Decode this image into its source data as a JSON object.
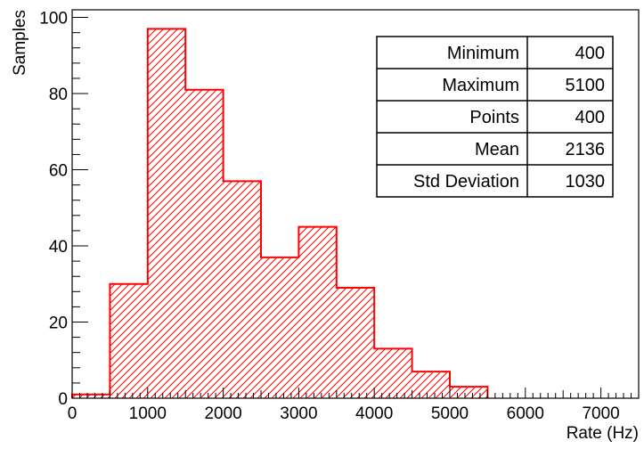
{
  "chart_data": {
    "type": "bar",
    "histogram": true,
    "bin_width": 500,
    "bin_starts": [
      0,
      500,
      1000,
      1500,
      2000,
      2500,
      3000,
      3500,
      4000,
      4500,
      5000
    ],
    "values": [
      1,
      30,
      97,
      81,
      57,
      37,
      45,
      29,
      13,
      7,
      3
    ],
    "xlabel": "Rate (Hz)",
    "ylabel": "Samples",
    "xlim": [
      0,
      7500
    ],
    "ylim": [
      0,
      102
    ],
    "x_ticks": [
      0,
      1000,
      2000,
      3000,
      4000,
      5000,
      6000,
      7000
    ],
    "y_ticks": [
      0,
      20,
      40,
      60,
      80,
      100
    ],
    "x_tick_labels": [
      "0",
      "1000",
      "2000",
      "3000",
      "4000",
      "5000",
      "6000",
      "7000"
    ],
    "y_tick_labels": [
      "0",
      "20",
      "40",
      "60",
      "80",
      "100"
    ],
    "grid": false,
    "fill": "diagonal-hatch",
    "color": "#ff0000",
    "stats_box": {
      "placement": "top-right",
      "rows": [
        {
          "label": "Minimum",
          "value": "400"
        },
        {
          "label": "Maximum",
          "value": "5100"
        },
        {
          "label": "Points",
          "value": "400"
        },
        {
          "label": "Mean",
          "value": "2136"
        },
        {
          "label": "Std Deviation",
          "value": "1030"
        }
      ]
    }
  }
}
